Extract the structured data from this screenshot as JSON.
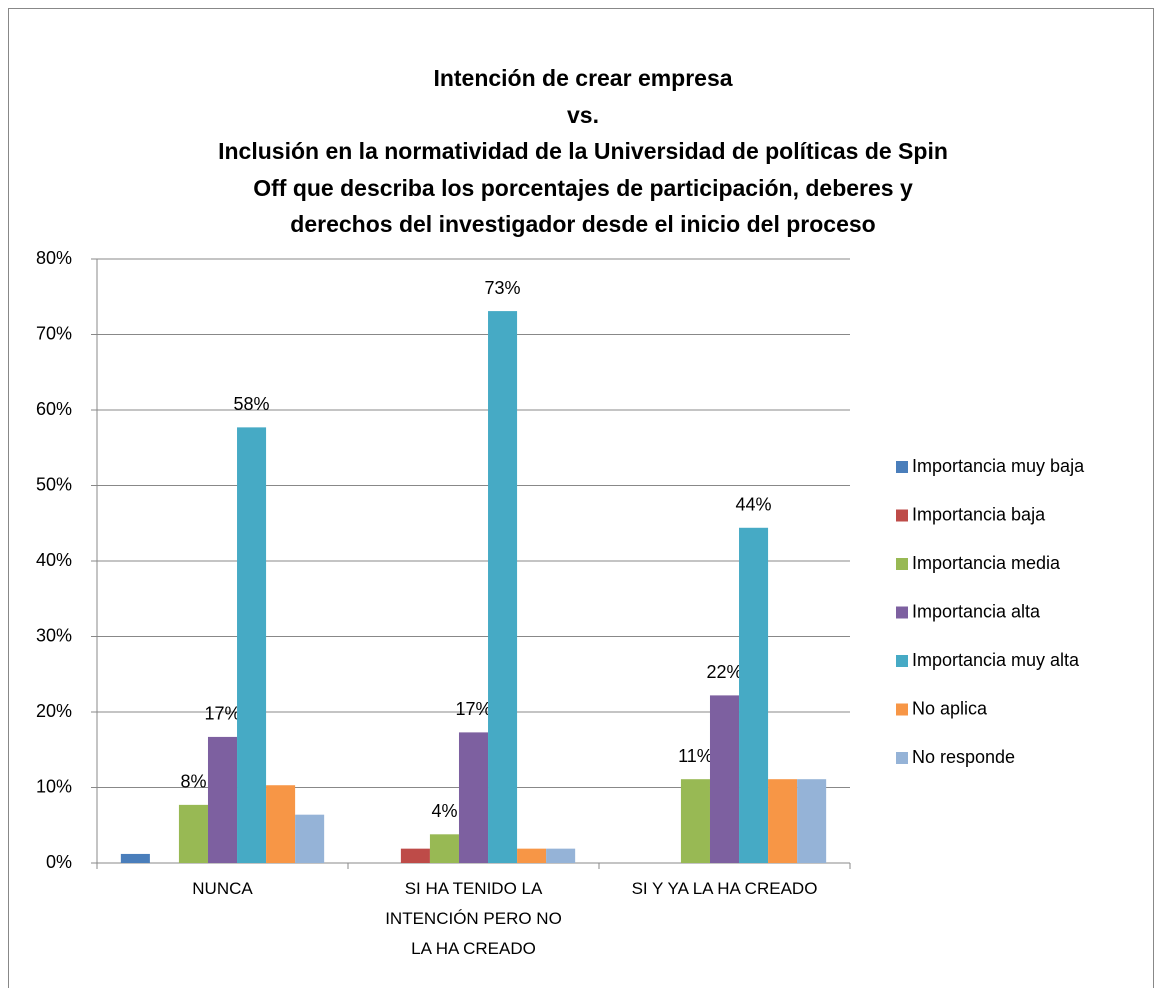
{
  "chart_data": {
    "type": "bar",
    "title": "Intención de crear empresa\nvs.\nInclusión en la normatividad de la Universidad de políticas de Spin\nOff que describa los porcentajes de participación, deberes y\nderechos del investigador desde el inicio del proceso",
    "categories": [
      "NUNCA",
      "SI HA TENIDO LA\nINTENCIÓN PERO NO\nLA HA CREADO",
      "SI Y YA LA HA CREADO"
    ],
    "series": [
      {
        "name": "Importancia muy baja",
        "color": "#4a7ebb",
        "values": [
          1.2,
          0,
          0
        ]
      },
      {
        "name": "Importancia baja",
        "color": "#be4b48",
        "values": [
          0,
          1.9,
          0
        ]
      },
      {
        "name": "Importancia media",
        "color": "#98b954",
        "values": [
          7.7,
          3.8,
          11.1
        ],
        "value_labels": [
          "8%",
          "4%",
          "11%"
        ]
      },
      {
        "name": "Importancia alta",
        "color": "#7d60a0",
        "values": [
          16.7,
          17.3,
          22.2
        ],
        "value_labels": [
          "17%",
          "17%",
          "22%"
        ]
      },
      {
        "name": "Importancia muy alta",
        "color": "#46aac5",
        "values": [
          57.7,
          73.1,
          44.4
        ],
        "value_labels": [
          "58%",
          "73%",
          "44%"
        ]
      },
      {
        "name": "No aplica",
        "color": "#f79646",
        "values": [
          10.3,
          1.9,
          11.1
        ]
      },
      {
        "name": "No responde",
        "color": "#95b3d7",
        "values": [
          6.4,
          1.9,
          11.1
        ]
      }
    ],
    "ylim": [
      0,
      80
    ],
    "yticks": [
      {
        "value": 0,
        "label": "0%"
      },
      {
        "value": 10,
        "label": "10%"
      },
      {
        "value": 20,
        "label": "20%"
      },
      {
        "value": 30,
        "label": "30%"
      },
      {
        "value": 40,
        "label": "40%"
      },
      {
        "value": 50,
        "label": "50%"
      },
      {
        "value": 60,
        "label": "60%"
      },
      {
        "value": 70,
        "label": "70%"
      },
      {
        "value": 80,
        "label": "80%"
      }
    ],
    "grid": true,
    "legend": "right"
  }
}
